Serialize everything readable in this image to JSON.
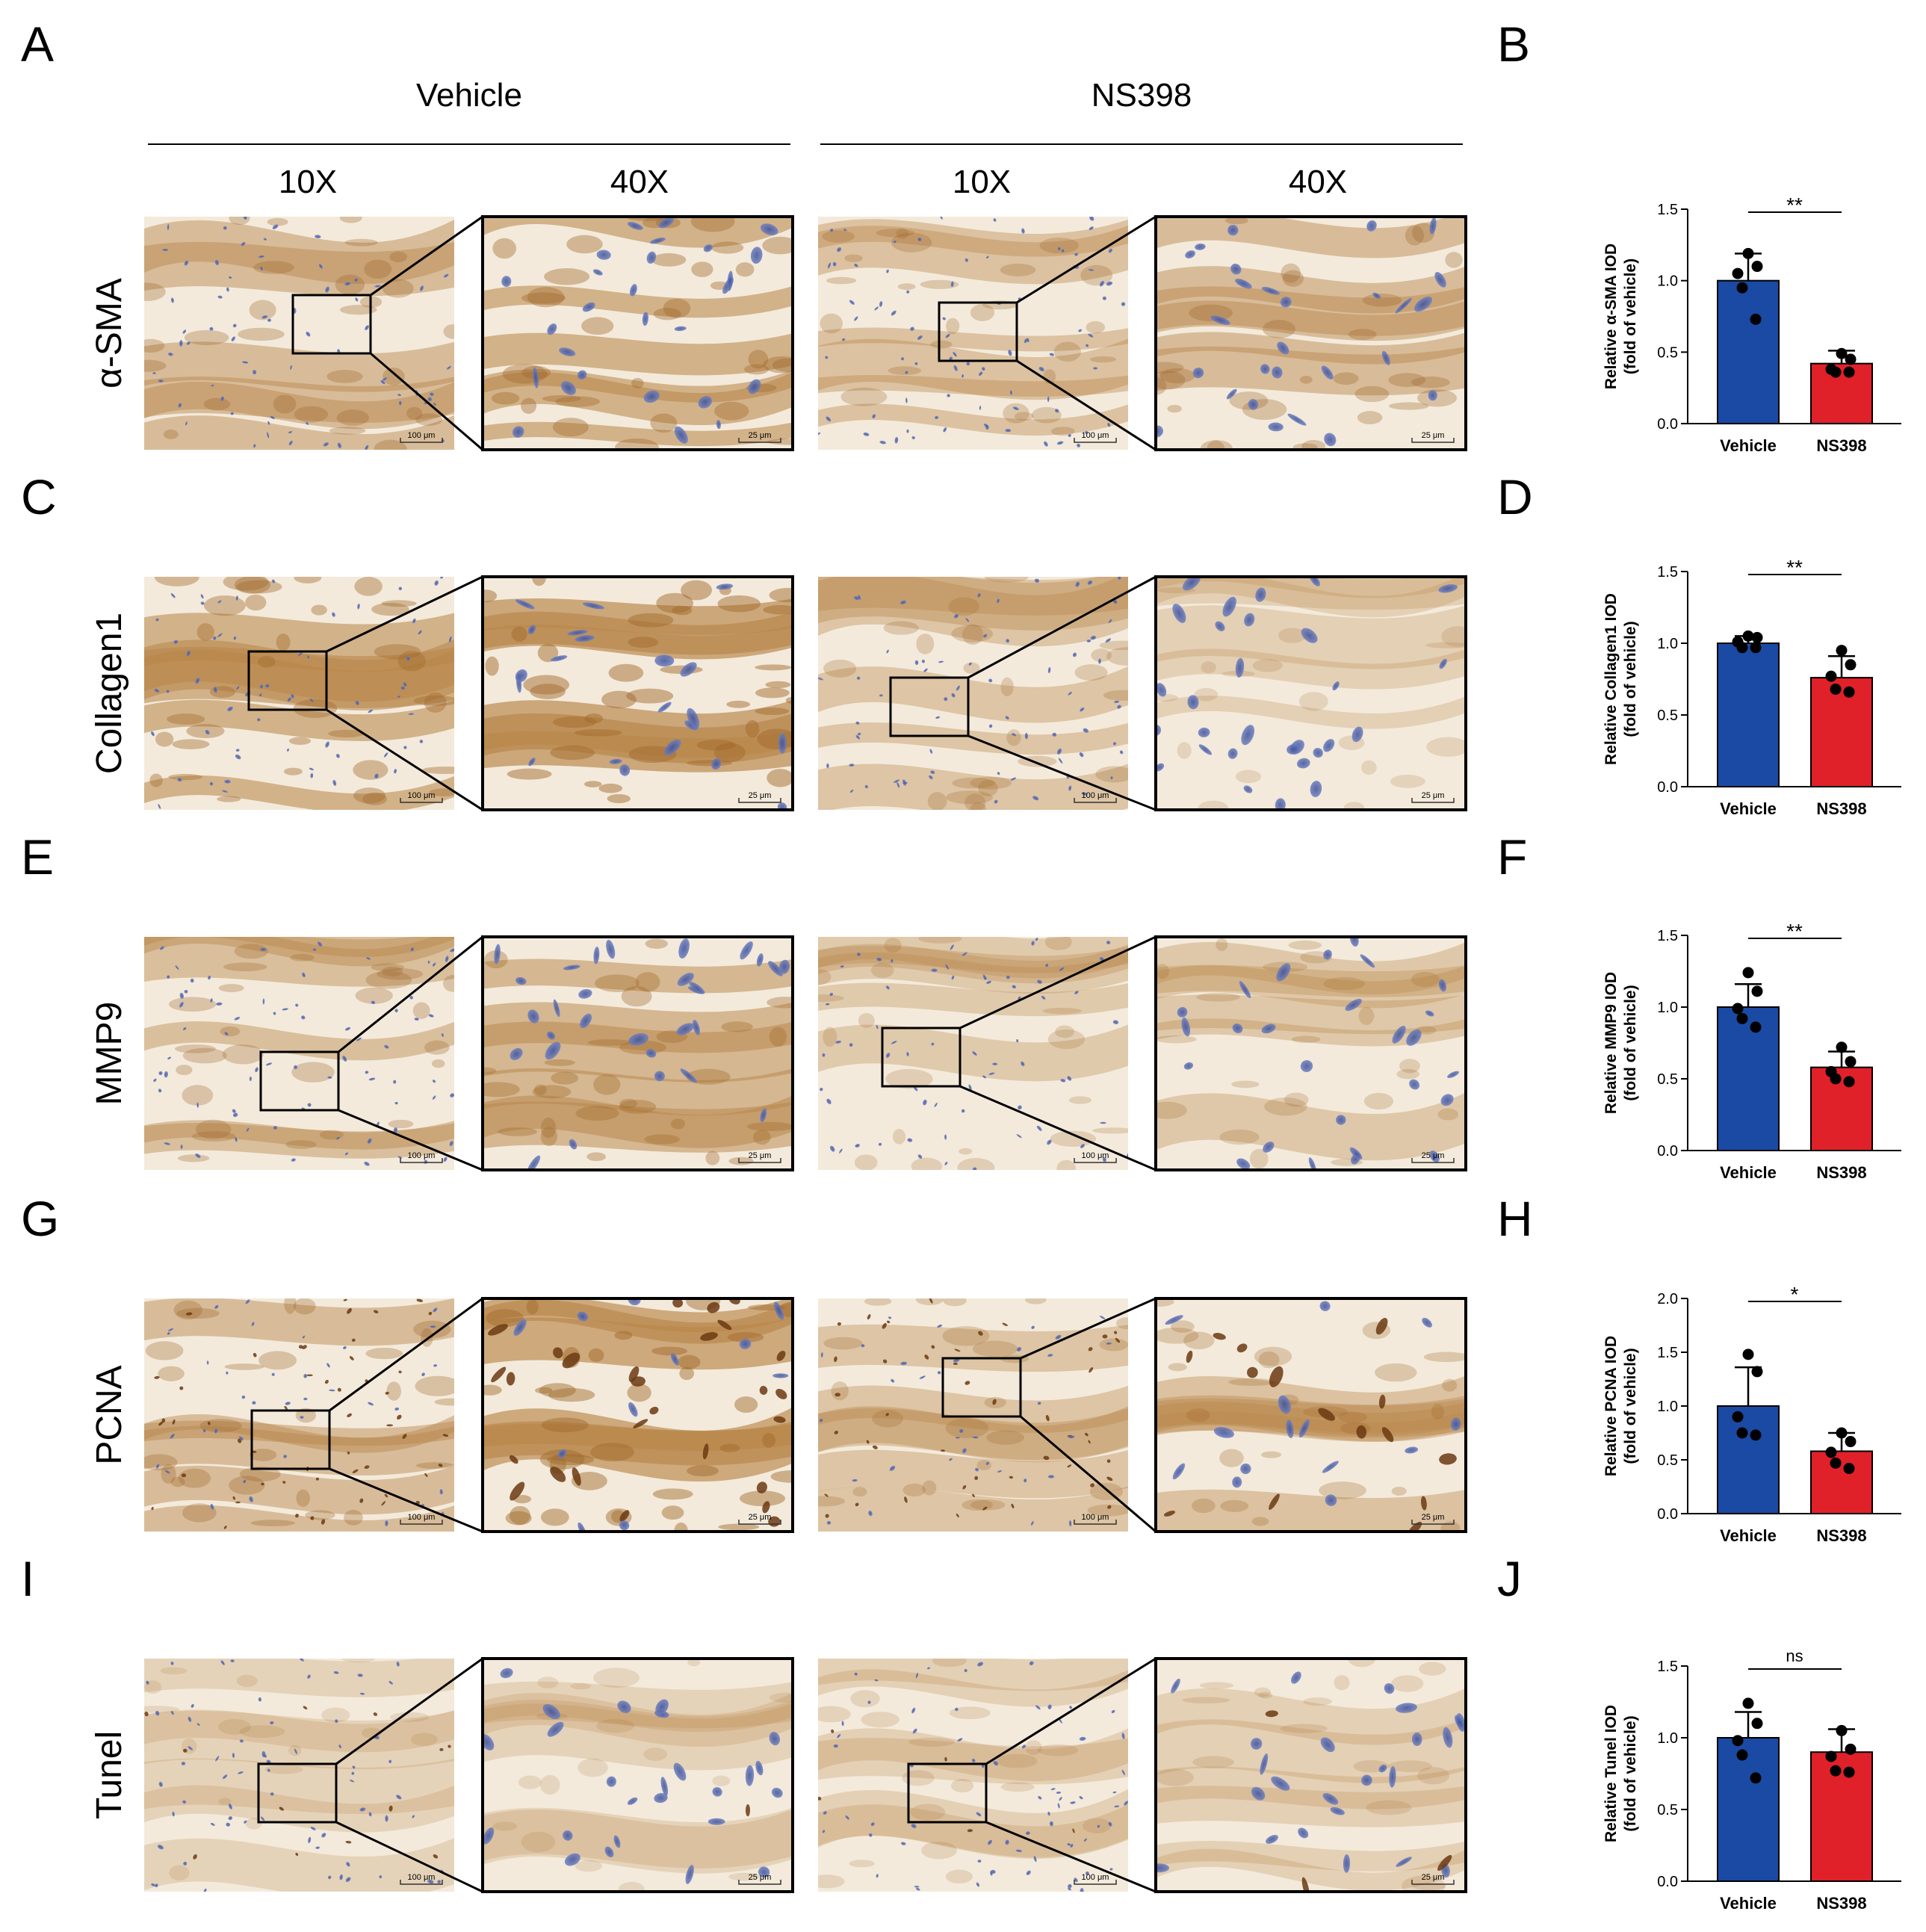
{
  "groups": [
    "Vehicle",
    "NS398"
  ],
  "magnifications": [
    "10X",
    "40X"
  ],
  "scale_bars": [
    "100 μm",
    "25 μm"
  ],
  "colors": {
    "vehicle_bar": "#1a4aa3",
    "ns398_bar": "#e02129",
    "stain_brown": "#b8864a",
    "nuclei_blue": "#5a6fb5",
    "tissue_bg": "#f3eadb"
  },
  "rows": [
    {
      "label": "α-SMA",
      "img_letter": "A",
      "chart_letter": "B",
      "stain": [
        0.55,
        0.75,
        0.45,
        0.55
      ],
      "nuclei": [
        0.35,
        0.5,
        0.55,
        0.5
      ]
    },
    {
      "label": "Collagen1",
      "img_letter": "C",
      "chart_letter": "D",
      "stain": [
        0.75,
        0.95,
        0.4,
        0.2
      ],
      "nuclei": [
        0.3,
        0.3,
        0.4,
        0.55
      ]
    },
    {
      "label": "MMP9",
      "img_letter": "E",
      "chart_letter": "F",
      "stain": [
        0.5,
        0.65,
        0.3,
        0.35
      ],
      "nuclei": [
        0.45,
        0.55,
        0.35,
        0.45
      ]
    },
    {
      "label": "PCNA",
      "img_letter": "G",
      "chart_letter": "H",
      "stain": [
        0.55,
        0.9,
        0.4,
        0.45
      ],
      "nuclei": [
        0.6,
        0.85,
        0.5,
        0.55
      ]
    },
    {
      "label": "Tunel",
      "img_letter": "I",
      "chart_letter": "J",
      "stain": [
        0.15,
        0.15,
        0.2,
        0.2
      ],
      "nuclei": [
        0.5,
        0.45,
        0.45,
        0.5
      ]
    }
  ],
  "chart_data": [
    {
      "type": "bar",
      "panel": "B",
      "categories": [
        "Vehicle",
        "NS398"
      ],
      "ylabel": [
        "Relative   α-SMA IOD",
        "(fold of vehicle)"
      ],
      "ylim": [
        0,
        1.5
      ],
      "yticks": [
        "0.0",
        "0.5",
        "1.0",
        "1.5"
      ],
      "values": [
        1.0,
        0.42
      ],
      "errors": [
        0.19,
        0.09
      ],
      "points": [
        [
          1.19,
          1.1,
          1.05,
          0.95,
          0.73
        ],
        [
          0.49,
          0.45,
          0.38,
          0.36,
          0.36
        ]
      ],
      "significance": "**"
    },
    {
      "type": "bar",
      "panel": "D",
      "categories": [
        "Vehicle",
        "NS398"
      ],
      "ylabel": [
        "Relative Collagen1 IOD",
        "(fold of vehicle)"
      ],
      "ylim": [
        0,
        1.5
      ],
      "yticks": [
        "0.0",
        "0.5",
        "1.0",
        "1.5"
      ],
      "values": [
        1.0,
        0.76
      ],
      "errors": [
        0.05,
        0.15
      ],
      "points": [
        [
          1.05,
          1.04,
          1.01,
          0.97,
          0.97
        ],
        [
          0.95,
          0.85,
          0.77,
          0.68,
          0.66
        ]
      ],
      "significance": "**"
    },
    {
      "type": "bar",
      "panel": "F",
      "categories": [
        "Vehicle",
        "NS398"
      ],
      "ylabel": [
        "Relative MMP9 IOD",
        "(fold of vehicle)"
      ],
      "ylim": [
        0,
        1.5
      ],
      "yticks": [
        "0.0",
        "0.5",
        "1.0",
        "1.5"
      ],
      "values": [
        1.0,
        0.58
      ],
      "errors": [
        0.16,
        0.11
      ],
      "points": [
        [
          1.24,
          1.11,
          0.99,
          0.92,
          0.86
        ],
        [
          0.72,
          0.62,
          0.55,
          0.5,
          0.48
        ]
      ],
      "significance": "**"
    },
    {
      "type": "bar",
      "panel": "H",
      "categories": [
        "Vehicle",
        "NS398"
      ],
      "ylabel": [
        "Relative PCNA IOD",
        "(fold of vehicle)"
      ],
      "ylim": [
        0,
        2.0
      ],
      "yticks": [
        "0.0",
        "0.5",
        "1.0",
        "1.5",
        "2.0"
      ],
      "values": [
        1.0,
        0.58
      ],
      "errors": [
        0.36,
        0.17
      ],
      "points": [
        [
          1.48,
          1.32,
          0.9,
          0.75,
          0.73
        ],
        [
          0.75,
          0.67,
          0.57,
          0.47,
          0.42
        ]
      ],
      "significance": "*"
    },
    {
      "type": "bar",
      "panel": "J",
      "categories": [
        "Vehicle",
        "NS398"
      ],
      "ylabel": [
        "Relative Tunel IOD",
        "(fold of vehicle)"
      ],
      "ylim": [
        0,
        1.5
      ],
      "yticks": [
        "0.0",
        "0.5",
        "1.0",
        "1.5"
      ],
      "values": [
        1.0,
        0.9
      ],
      "errors": [
        0.18,
        0.16
      ],
      "points": [
        [
          1.24,
          1.1,
          0.98,
          0.88,
          0.72
        ],
        [
          1.05,
          0.92,
          0.87,
          0.77,
          0.76
        ]
      ],
      "significance": "ns"
    }
  ]
}
